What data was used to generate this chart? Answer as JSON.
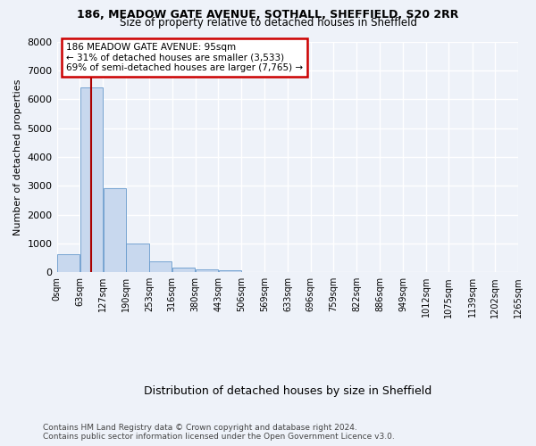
{
  "title1": "186, MEADOW GATE AVENUE, SOTHALL, SHEFFIELD, S20 2RR",
  "title2": "Size of property relative to detached houses in Sheffield",
  "xlabel": "Distribution of detached houses by size in Sheffield",
  "ylabel": "Number of detached properties",
  "bar_color": "#c8d8ee",
  "bar_edge_color": "#6699cc",
  "bg_color": "#eef2f9",
  "grid_color": "#ffffff",
  "annotation_box_edgecolor": "#cc0000",
  "property_line_color": "#aa0000",
  "property_value": 95,
  "annotation_line1": "186 MEADOW GATE AVENUE: 95sqm",
  "annotation_line2": "← 31% of detached houses are smaller (3,533)",
  "annotation_line3": "69% of semi-detached houses are larger (7,765) →",
  "footer": "Contains HM Land Registry data © Crown copyright and database right 2024.\nContains public sector information licensed under the Open Government Licence v3.0.",
  "bin_labels": [
    "0sqm",
    "63sqm",
    "127sqm",
    "190sqm",
    "253sqm",
    "316sqm",
    "380sqm",
    "443sqm",
    "506sqm",
    "569sqm",
    "633sqm",
    "696sqm",
    "759sqm",
    "822sqm",
    "886sqm",
    "949sqm",
    "1012sqm",
    "1075sqm",
    "1139sqm",
    "1202sqm",
    "1265sqm"
  ],
  "bin_edges": [
    0,
    63,
    127,
    190,
    253,
    316,
    380,
    443,
    506,
    569,
    633,
    696,
    759,
    822,
    886,
    949,
    1012,
    1075,
    1139,
    1202,
    1265
  ],
  "bar_heights": [
    620,
    6400,
    2900,
    1000,
    370,
    160,
    90,
    70,
    0,
    0,
    0,
    0,
    0,
    0,
    0,
    0,
    0,
    0,
    0,
    0
  ],
  "ylim": [
    0,
    8000
  ],
  "yticks": [
    0,
    1000,
    2000,
    3000,
    4000,
    5000,
    6000,
    7000,
    8000
  ]
}
